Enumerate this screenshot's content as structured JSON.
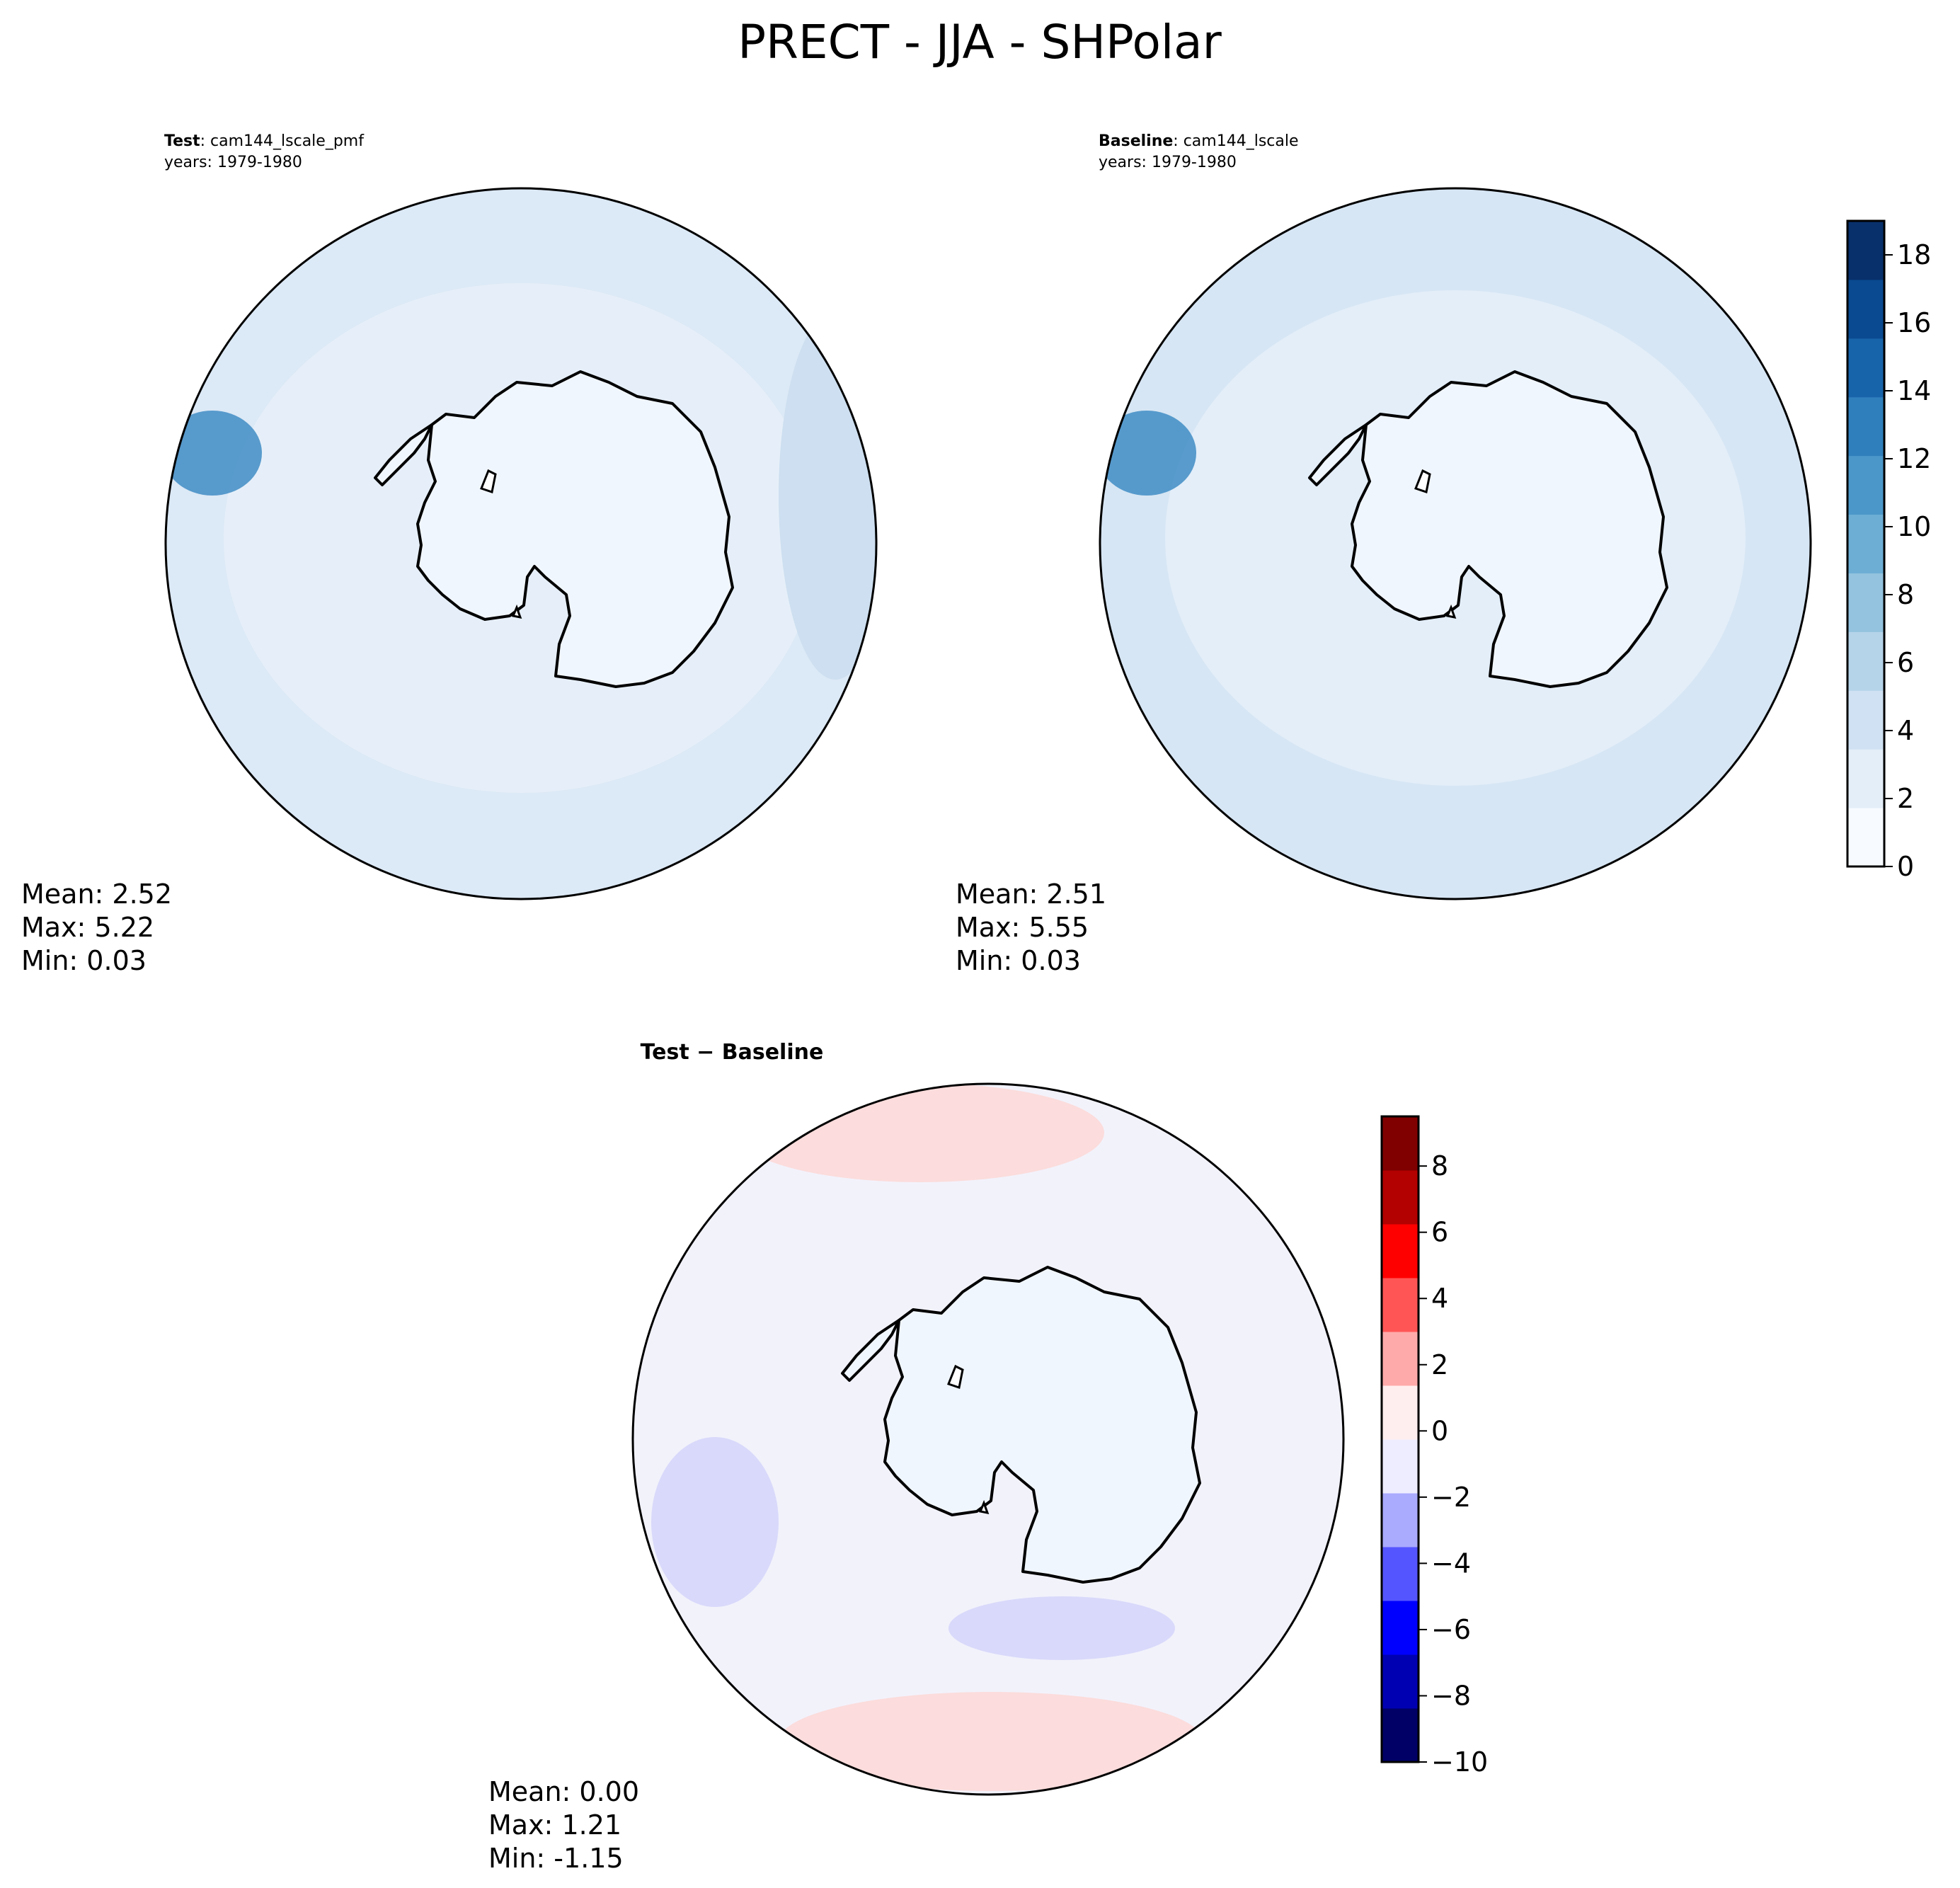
{
  "figure": {
    "title": "PRECT - JJA - SHPolar"
  },
  "panels": {
    "test": {
      "label_bold": "Test",
      "label_rest": ": cam144_lscale_pmf",
      "years": "years: 1979-1980",
      "stats": {
        "mean": "Mean:  2.52",
        "max": "Max:  5.22",
        "min": "Min:  0.03"
      }
    },
    "baseline": {
      "label_bold": "Baseline",
      "label_rest": ": cam144_lscale",
      "years": "years: 1979-1980",
      "stats": {
        "mean": "Mean:  2.51",
        "max": "Max:  5.55",
        "min": "Min:  0.03"
      }
    },
    "diff": {
      "label": "Test − Baseline",
      "stats": {
        "mean": "Mean:  0.00",
        "max": "Max:  1.21",
        "min": "Min: -1.15"
      }
    }
  },
  "colorbars": {
    "precip": {
      "ticks": [
        "0",
        "2",
        "4",
        "6",
        "8",
        "10",
        "12",
        "14",
        "16",
        "18"
      ],
      "range": [
        0,
        19
      ],
      "colors": [
        "#f7fbff",
        "#e3eef9",
        "#cfe1f2",
        "#b5d4e9",
        "#93c3df",
        "#6daed5",
        "#4b97c9",
        "#2f7fbc",
        "#1864aa",
        "#0a4a90",
        "#08306b"
      ]
    },
    "diff": {
      "ticks": [
        "−10",
        "−8",
        "−6",
        "−4",
        "−2",
        "0",
        "2",
        "4",
        "6",
        "8"
      ],
      "range": [
        -10,
        9.5
      ],
      "colors": [
        "#000066",
        "#0000b3",
        "#0000ff",
        "#5555ff",
        "#aaaaff",
        "#ededff",
        "#ffeeee",
        "#ffaaaa",
        "#ff5555",
        "#ff0000",
        "#b30000",
        "#800000"
      ]
    }
  },
  "map_colors": {
    "ocean_test": "#dce9f6",
    "ocean_baseline": "#d7e6f4",
    "ocean_diff": "#f2f2fb",
    "antarctica": "#f0f6fd",
    "diff_positive": "#fcdcdc",
    "diff_negative": "#d9d9fb",
    "coast": "#000000"
  }
}
